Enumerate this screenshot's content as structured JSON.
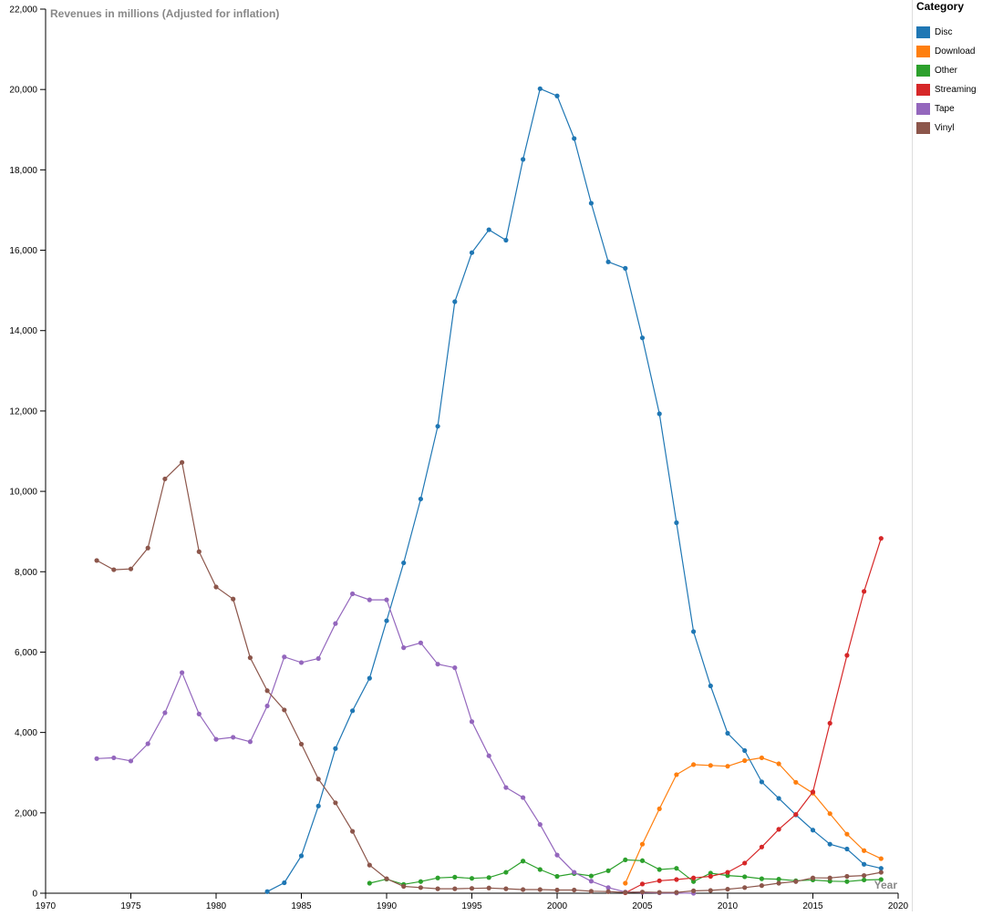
{
  "chart_data": {
    "type": "line",
    "title": "Revenues in millions (Adjusted for inflation)",
    "xlabel": "Year",
    "ylabel": "",
    "xlim": [
      1970,
      2020
    ],
    "ylim": [
      0,
      22000
    ],
    "x_ticks": [
      "1970",
      "1975",
      "1980",
      "1985",
      "1990",
      "1995",
      "2000",
      "2005",
      "2010",
      "2015",
      "2020"
    ],
    "y_ticks": [
      "0",
      "2,000",
      "4,000",
      "6,000",
      "8,000",
      "10,000",
      "12,000",
      "14,000",
      "16,000",
      "18,000",
      "20,000",
      "22,000"
    ],
    "grid": false,
    "legend_title": "Category",
    "legend_position": "right",
    "series": [
      {
        "name": "Disc",
        "color": "#1f77b4",
        "x": [
          1983,
          1984,
          1985,
          1986,
          1987,
          1988,
          1989,
          1990,
          1991,
          1992,
          1993,
          1994,
          1995,
          1996,
          1997,
          1998,
          1999,
          2000,
          2001,
          2002,
          2003,
          2004,
          2005,
          2006,
          2007,
          2008,
          2009,
          2010,
          2011,
          2012,
          2013,
          2014,
          2015,
          2016,
          2017,
          2018,
          2019
        ],
        "y": [
          40,
          260,
          930,
          2170,
          3600,
          4540,
          5350,
          6780,
          8220,
          9810,
          11620,
          14720,
          15940,
          16510,
          16250,
          18260,
          20020,
          19840,
          18780,
          17170,
          15710,
          15550,
          13820,
          11930,
          9220,
          6510,
          5160,
          3980,
          3550,
          2770,
          2360,
          1950,
          1570,
          1220,
          1100,
          720,
          620
        ]
      },
      {
        "name": "Download",
        "color": "#ff7f0e",
        "x": [
          2004,
          2005,
          2006,
          2007,
          2008,
          2009,
          2010,
          2011,
          2012,
          2013,
          2014,
          2015,
          2016,
          2017,
          2018,
          2019
        ],
        "y": [
          250,
          1220,
          2100,
          2950,
          3200,
          3180,
          3160,
          3300,
          3370,
          3220,
          2760,
          2490,
          1980,
          1470,
          1060,
          860
        ]
      },
      {
        "name": "Other",
        "color": "#2ca02c",
        "x": [
          1989,
          1990,
          1991,
          1992,
          1993,
          1994,
          1995,
          1996,
          1997,
          1998,
          1999,
          2000,
          2001,
          2002,
          2003,
          2004,
          2005,
          2006,
          2007,
          2008,
          2009,
          2010,
          2011,
          2012,
          2013,
          2014,
          2015,
          2016,
          2017,
          2018,
          2019
        ],
        "y": [
          250,
          350,
          220,
          290,
          380,
          400,
          370,
          390,
          520,
          800,
          590,
          420,
          490,
          430,
          560,
          830,
          810,
          590,
          620,
          290,
          500,
          440,
          410,
          360,
          350,
          310,
          330,
          300,
          290,
          330,
          340
        ]
      },
      {
        "name": "Streaming",
        "color": "#d62728",
        "x": [
          2004,
          2005,
          2006,
          2007,
          2008,
          2009,
          2010,
          2011,
          2012,
          2013,
          2014,
          2015,
          2016,
          2017,
          2018,
          2019
        ],
        "y": [
          10,
          230,
          310,
          340,
          380,
          420,
          520,
          750,
          1150,
          1590,
          1960,
          2520,
          4230,
          5920,
          7510,
          8830
        ]
      },
      {
        "name": "Tape",
        "color": "#9467bd",
        "x": [
          1973,
          1974,
          1975,
          1976,
          1977,
          1978,
          1979,
          1980,
          1981,
          1982,
          1983,
          1984,
          1985,
          1986,
          1987,
          1988,
          1989,
          1990,
          1991,
          1992,
          1993,
          1994,
          1995,
          1996,
          1997,
          1998,
          1999,
          2000,
          2001,
          2002,
          2003,
          2004,
          2005,
          2006,
          2007,
          2008
        ],
        "y": [
          3350,
          3370,
          3290,
          3720,
          4490,
          5490,
          4460,
          3830,
          3880,
          3770,
          4660,
          5880,
          5740,
          5840,
          6710,
          7450,
          7300,
          7300,
          6110,
          6230,
          5700,
          5610,
          4270,
          3420,
          2630,
          2380,
          1710,
          950,
          520,
          300,
          140,
          30,
          20,
          10,
          5,
          0
        ]
      },
      {
        "name": "Vinyl",
        "color": "#8c564b",
        "x": [
          1973,
          1974,
          1975,
          1976,
          1977,
          1978,
          1979,
          1980,
          1981,
          1982,
          1983,
          1984,
          1985,
          1986,
          1987,
          1988,
          1989,
          1990,
          1991,
          1992,
          1993,
          1994,
          1995,
          1996,
          1997,
          1998,
          1999,
          2000,
          2001,
          2002,
          2003,
          2004,
          2005,
          2006,
          2007,
          2008,
          2009,
          2010,
          2011,
          2012,
          2013,
          2014,
          2015,
          2016,
          2017,
          2018,
          2019
        ],
        "y": [
          8280,
          8050,
          8070,
          8590,
          10310,
          10720,
          8500,
          7620,
          7320,
          5860,
          5040,
          4560,
          3710,
          2840,
          2250,
          1540,
          700,
          360,
          170,
          140,
          110,
          110,
          120,
          130,
          110,
          90,
          90,
          80,
          80,
          50,
          40,
          20,
          30,
          20,
          20,
          60,
          70,
          100,
          140,
          190,
          250,
          290,
          380,
          380,
          420,
          440,
          520
        ]
      }
    ]
  }
}
